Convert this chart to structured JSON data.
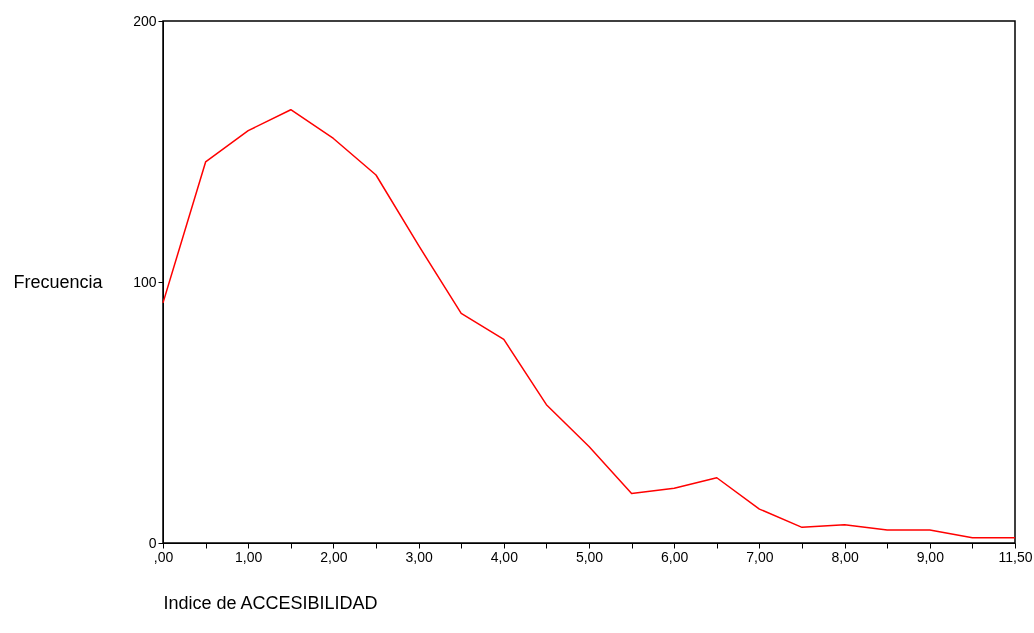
{
  "chart_data": {
    "type": "line",
    "xlabel": "Indice  de ACCESIBILIDAD",
    "ylabel": "Frecuencia",
    "categories": [
      ",00",
      null,
      "1,00",
      null,
      "2,00",
      null,
      "3,00",
      null,
      "4,00",
      null,
      "5,00",
      null,
      "6,00",
      null,
      "7,00",
      null,
      "8,00",
      null,
      "9,00",
      null,
      "11,50"
    ],
    "series": [
      {
        "color": "#ff0000",
        "values": [
          92,
          146,
          158,
          166,
          155,
          141,
          114,
          88,
          78,
          53,
          37,
          19,
          21,
          25,
          13,
          6,
          7,
          5,
          5,
          2,
          2
        ]
      }
    ],
    "ylim": [
      0,
      200
    ],
    "yticks": [
      0,
      100,
      200
    ],
    "grid": false,
    "marker": "none",
    "line_style": "solid"
  }
}
